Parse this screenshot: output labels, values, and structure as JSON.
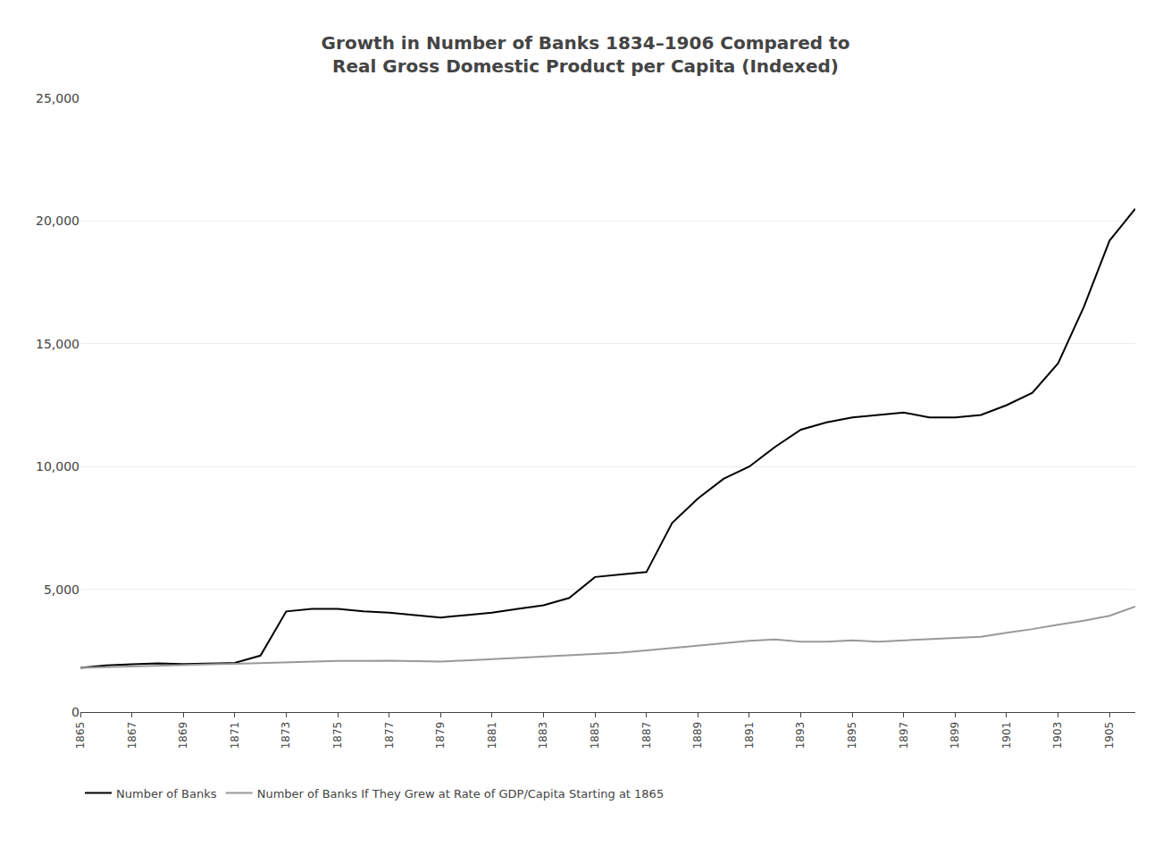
{
  "chart_data": {
    "type": "line",
    "title": "Growth in Number of Banks 1834–1906 Compared to\nReal Gross Domestic Product per Capita (Indexed)",
    "x": [
      1865,
      1866,
      1867,
      1868,
      1869,
      1870,
      1871,
      1872,
      1873,
      1874,
      1875,
      1876,
      1877,
      1878,
      1879,
      1880,
      1881,
      1882,
      1883,
      1884,
      1885,
      1886,
      1887,
      1888,
      1889,
      1890,
      1891,
      1892,
      1893,
      1894,
      1895,
      1896,
      1897,
      1898,
      1899,
      1900,
      1901,
      1902,
      1903,
      1904,
      1905,
      1906
    ],
    "series": [
      {
        "name": "Number of Banks",
        "color": "#000000",
        "values": [
          1800,
          1900,
          1950,
          1980,
          1960,
          1970,
          2000,
          2300,
          4100,
          4200,
          4200,
          4100,
          4050,
          3950,
          3850,
          3950,
          4050,
          4200,
          4350,
          4650,
          5500,
          5600,
          5700,
          7700,
          8700,
          9500,
          10000,
          10800,
          11500,
          11800,
          12000,
          12100,
          12200,
          12000,
          12000,
          12100,
          12500,
          13000,
          14200,
          16500,
          19200,
          20500
        ]
      },
      {
        "name": "Number of Banks If They Grew at Rate of GDP/Capita Starting at 1865",
        "color": "#999999",
        "values": [
          1800,
          1830,
          1860,
          1890,
          1910,
          1940,
          1970,
          2000,
          2030,
          2060,
          2080,
          2080,
          2090,
          2070,
          2060,
          2100,
          2150,
          2200,
          2250,
          2310,
          2360,
          2420,
          2510,
          2610,
          2710,
          2820,
          2900,
          2960,
          2870,
          2870,
          2920,
          2870,
          2920,
          2970,
          3020,
          3070,
          3230,
          3380,
          3560,
          3720,
          3920,
          4300
        ]
      }
    ],
    "xlim": [
      1865,
      1906
    ],
    "xticks": [
      1865,
      1867,
      1869,
      1871,
      1873,
      1875,
      1877,
      1879,
      1881,
      1883,
      1885,
      1887,
      1889,
      1891,
      1893,
      1895,
      1897,
      1899,
      1901,
      1903,
      1905
    ],
    "ylim": [
      0,
      25000
    ],
    "yticks": [
      0,
      {
        "value": 5000,
        "label": "5,000"
      },
      {
        "value": 10000,
        "label": "10,000"
      },
      {
        "value": 15000,
        "label": "15,000"
      },
      {
        "value": 20000,
        "label": "20,000"
      },
      {
        "value": 25000,
        "label": "25,000"
      }
    ],
    "grid": true,
    "legend": "bottom"
  }
}
